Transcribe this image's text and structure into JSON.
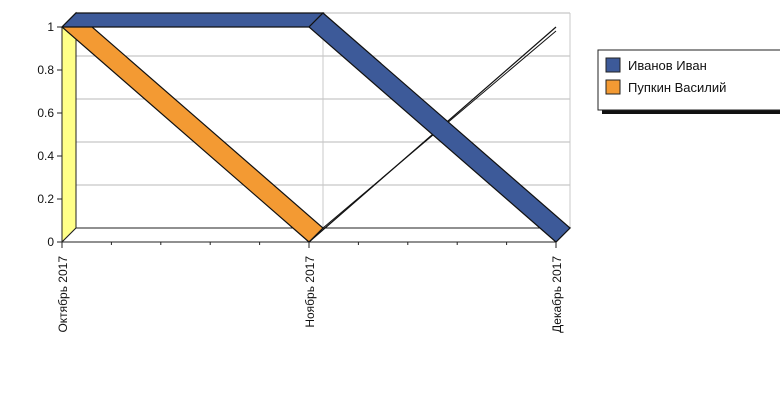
{
  "chart_data": {
    "type": "line",
    "title": "",
    "xlabel": "",
    "ylabel": "",
    "categories": [
      "Октябрь  2017",
      "Ноябрь  2017",
      "Декабрь  2017"
    ],
    "yticks": [
      "0",
      "0.2",
      "0.4",
      "0.6",
      "0.8",
      "1"
    ],
    "ylim": [
      0,
      1
    ],
    "grid": true,
    "legend_position": "right",
    "style": "3d",
    "series": [
      {
        "name": "Иванов Иван",
        "values": [
          1,
          1,
          0
        ],
        "color": "#3d5a99"
      },
      {
        "name": "Пупкин Василий",
        "values": [
          1,
          0,
          1
        ],
        "color": "#f39a33"
      }
    ],
    "wall_color": "#ffff88"
  }
}
